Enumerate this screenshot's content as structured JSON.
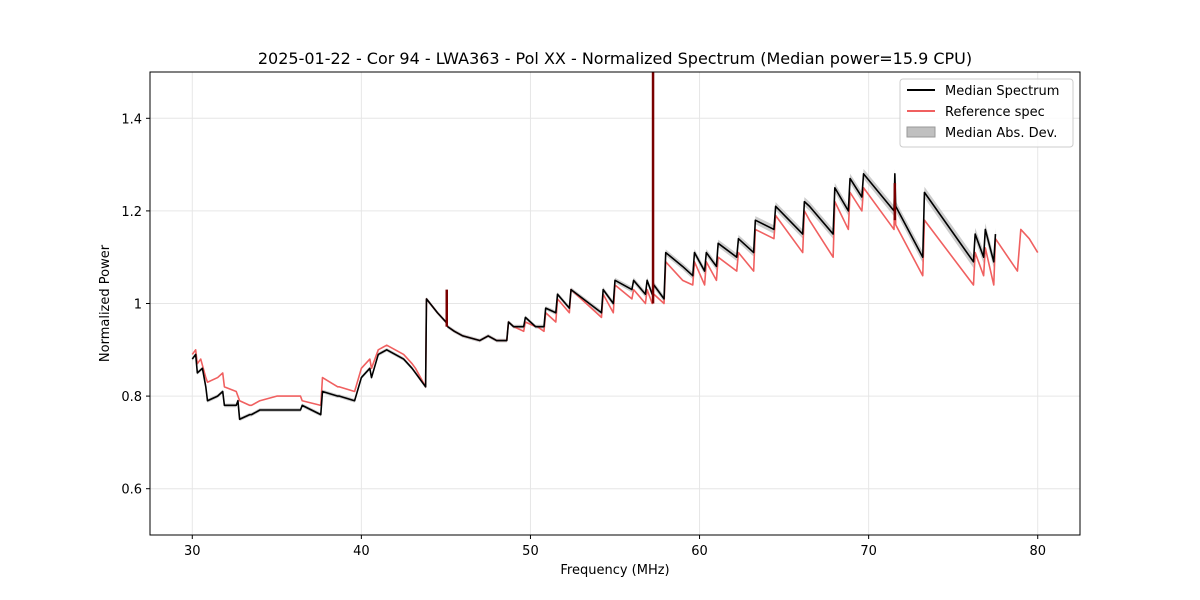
{
  "chart_data": {
    "type": "line",
    "title": "2025-01-22 - Cor 94 - LWA363 - Pol XX - Normalized Spectrum (Median power=15.9 CPU)",
    "xlabel": "Frequency (MHz)",
    "ylabel": "Normalized Power",
    "xlim": [
      27.5,
      82.5
    ],
    "ylim": [
      0.5,
      1.5
    ],
    "xticks": [
      30,
      40,
      50,
      60,
      70,
      80
    ],
    "yticks": [
      0.6,
      0.8,
      1.0,
      1.2,
      1.4
    ],
    "grid": true,
    "legend_position": "top-right",
    "legend": [
      "Median Spectrum",
      "Reference spec",
      "Median Abs. Dev."
    ],
    "colors": {
      "median": "#000000",
      "reference": "#f06060",
      "mad": "#c0c0c0",
      "spike": "#7a0000"
    },
    "series": [
      {
        "name": "Reference spec",
        "x": [
          30.0,
          30.2,
          30.3,
          30.5,
          30.8,
          30.9,
          31.5,
          31.8,
          31.9,
          32.6,
          32.7,
          32.8,
          33.4,
          33.5,
          34.0,
          35.0,
          36.4,
          36.5,
          37.6,
          37.7,
          38.6,
          38.7,
          39.6,
          40.0,
          40.5,
          40.6,
          41.0,
          41.5,
          42.0,
          42.5,
          43.0,
          43.2,
          43.8,
          43.85,
          44.5,
          45.0,
          45.1,
          45.5,
          46.0,
          47.0,
          47.5,
          48.0,
          48.6,
          48.7,
          49.0,
          49.6,
          49.7,
          50.3,
          50.4,
          50.8,
          50.9,
          51.5,
          51.6,
          52.3,
          52.4,
          54.2,
          54.3,
          54.9,
          55.0,
          56.0,
          56.1,
          56.8,
          56.9,
          57.2,
          57.3,
          57.9,
          58.0,
          59.0,
          59.6,
          59.7,
          60.3,
          60.4,
          61.0,
          61.1,
          62.2,
          62.3,
          63.2,
          63.3,
          64.4,
          64.5,
          66.1,
          66.2,
          66.5,
          67.9,
          68.0,
          68.8,
          68.9,
          69.6,
          69.7,
          71.5,
          71.55,
          71.6,
          73.2,
          73.3,
          76.2,
          76.3,
          76.8,
          76.9,
          77.4,
          77.5,
          78.8,
          79.0,
          79.5,
          80.0
        ],
        "y": [
          0.89,
          0.9,
          0.87,
          0.88,
          0.84,
          0.83,
          0.84,
          0.85,
          0.82,
          0.81,
          0.8,
          0.79,
          0.78,
          0.78,
          0.79,
          0.8,
          0.8,
          0.79,
          0.78,
          0.84,
          0.82,
          0.82,
          0.81,
          0.86,
          0.88,
          0.86,
          0.9,
          0.91,
          0.9,
          0.89,
          0.87,
          0.86,
          0.82,
          1.01,
          0.98,
          0.96,
          0.95,
          0.94,
          0.93,
          0.92,
          0.93,
          0.92,
          0.92,
          0.96,
          0.95,
          0.94,
          0.96,
          0.95,
          0.95,
          0.94,
          0.98,
          0.96,
          1.01,
          0.98,
          1.03,
          0.97,
          1.02,
          0.98,
          1.04,
          1.01,
          1.03,
          1.0,
          1.03,
          1.0,
          1.02,
          1.0,
          1.09,
          1.05,
          1.04,
          1.09,
          1.04,
          1.09,
          1.05,
          1.1,
          1.07,
          1.11,
          1.07,
          1.16,
          1.14,
          1.19,
          1.11,
          1.2,
          1.18,
          1.1,
          1.22,
          1.16,
          1.24,
          1.2,
          1.25,
          1.16,
          1.25,
          1.17,
          1.06,
          1.18,
          1.04,
          1.11,
          1.06,
          1.12,
          1.04,
          1.14,
          1.07,
          1.16,
          1.14,
          1.11
        ]
      },
      {
        "name": "Median Spectrum",
        "x": [
          30.0,
          30.2,
          30.3,
          30.6,
          30.8,
          30.9,
          31.5,
          31.8,
          31.9,
          32.6,
          32.7,
          32.8,
          33.4,
          33.5,
          34.0,
          35.0,
          36.4,
          36.5,
          37.6,
          37.7,
          38.6,
          38.7,
          39.6,
          40.0,
          40.5,
          40.6,
          41.0,
          41.5,
          42.0,
          42.5,
          43.0,
          43.2,
          43.8,
          43.85,
          44.5,
          45.0,
          45.1,
          45.5,
          46.0,
          47.0,
          47.5,
          48.0,
          48.6,
          48.7,
          49.0,
          49.6,
          49.7,
          50.3,
          50.4,
          50.8,
          50.9,
          51.5,
          51.6,
          52.3,
          52.4,
          54.2,
          54.3,
          54.9,
          55.0,
          56.0,
          56.1,
          56.8,
          56.9,
          57.2,
          57.3,
          57.9,
          58.0,
          59.0,
          59.6,
          59.7,
          60.3,
          60.4,
          61.0,
          61.1,
          62.2,
          62.3,
          63.2,
          63.3,
          64.4,
          64.5,
          66.1,
          66.2,
          66.5,
          67.9,
          68.0,
          68.8,
          68.9,
          69.6,
          69.7,
          71.5,
          71.55,
          71.6,
          73.2,
          73.3,
          76.2,
          76.3,
          76.8,
          76.9,
          77.4,
          77.5
        ],
        "y": [
          0.88,
          0.89,
          0.85,
          0.86,
          0.82,
          0.79,
          0.8,
          0.81,
          0.78,
          0.78,
          0.79,
          0.75,
          0.76,
          0.76,
          0.77,
          0.77,
          0.77,
          0.78,
          0.76,
          0.81,
          0.8,
          0.8,
          0.79,
          0.84,
          0.86,
          0.84,
          0.89,
          0.9,
          0.89,
          0.88,
          0.86,
          0.85,
          0.82,
          1.01,
          0.98,
          0.96,
          0.95,
          0.94,
          0.93,
          0.92,
          0.93,
          0.92,
          0.92,
          0.96,
          0.95,
          0.95,
          0.97,
          0.95,
          0.95,
          0.95,
          0.99,
          0.98,
          1.02,
          0.99,
          1.03,
          0.98,
          1.03,
          1.0,
          1.05,
          1.03,
          1.05,
          1.02,
          1.05,
          1.02,
          1.04,
          1.01,
          1.11,
          1.08,
          1.06,
          1.11,
          1.07,
          1.11,
          1.08,
          1.13,
          1.1,
          1.14,
          1.11,
          1.18,
          1.16,
          1.21,
          1.15,
          1.22,
          1.21,
          1.15,
          1.25,
          1.2,
          1.27,
          1.23,
          1.28,
          1.2,
          1.28,
          1.21,
          1.1,
          1.24,
          1.09,
          1.15,
          1.1,
          1.16,
          1.09,
          1.15
        ]
      }
    ],
    "spikes": [
      {
        "x": 57.25,
        "y_low": 1.0,
        "y_high": 1.5
      },
      {
        "x": 45.05,
        "y_low": 0.95,
        "y_high": 1.03
      },
      {
        "x": 71.55,
        "y_low": 1.18,
        "y_high": 1.26
      }
    ]
  }
}
